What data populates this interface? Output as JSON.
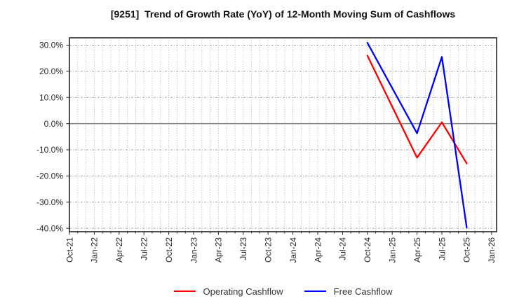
{
  "title": "[9251]  Trend of Growth Rate (YoY) of 12-Month Moving Sum of Cashflows",
  "colors": {
    "background": "#ffffff",
    "title_text": "#111111",
    "tick_text": "#333333",
    "plot_border": "#262626",
    "grid": "#a6a6a6",
    "zero_line": "#808080",
    "operating_cashflow": "#ff0000",
    "free_cashflow": "#0000ff"
  },
  "chart_data": {
    "type": "line",
    "title": "[9251]  Trend of Growth Rate (YoY) of 12-Month Moving Sum of Cashflows",
    "xlabel": "",
    "ylabel": "",
    "x_tick_labels": [
      "Oct-21",
      "Jan-22",
      "Apr-22",
      "Jul-22",
      "Oct-22",
      "Jan-23",
      "Apr-23",
      "Jul-23",
      "Oct-23",
      "Jan-24",
      "Apr-24",
      "Jul-24",
      "Oct-24",
      "Jan-25",
      "Apr-25",
      "Jul-25",
      "Oct-25",
      "Jan-26"
    ],
    "x_tick_month_step": 3,
    "minor_vertical_grid": "monthly",
    "y_tick_labels": [
      "30.0%",
      "20.0%",
      "10.0%",
      "0.0%",
      "-10.0%",
      "-20.0%",
      "-30.0%",
      "-40.0%"
    ],
    "y_tick_values": [
      30,
      20,
      10,
      0,
      -10,
      -20,
      -30,
      -40
    ],
    "ylim": [
      -41.3,
      32.8
    ],
    "xlim_months": [
      0,
      51.6
    ],
    "grid": "on",
    "legend_position": "bottom-center",
    "series": [
      {
        "name": "Operating Cashflow",
        "color": "#ff0000",
        "x": [
          "Oct-24",
          "Jan-25",
          "Apr-25",
          "Jul-25",
          "Oct-25"
        ],
        "month_index": [
          36,
          39,
          42,
          45,
          48
        ],
        "values": [
          26.0,
          6.5,
          -13.0,
          0.5,
          -15.2
        ]
      },
      {
        "name": "Free Cashflow",
        "color": "#0000ff",
        "x": [
          "Oct-24",
          "Jan-25",
          "Apr-25",
          "Jul-25",
          "Oct-25"
        ],
        "month_index": [
          36,
          39,
          42,
          45,
          48
        ],
        "values": [
          30.9,
          13.6,
          -3.7,
          25.5,
          -39.7
        ]
      }
    ]
  }
}
